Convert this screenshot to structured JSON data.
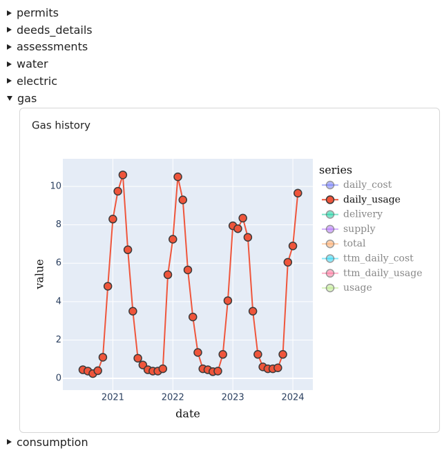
{
  "sections": [
    {
      "label": "permits",
      "expanded": false
    },
    {
      "label": "deeds_details",
      "expanded": false
    },
    {
      "label": "assessments",
      "expanded": false
    },
    {
      "label": "water",
      "expanded": false
    },
    {
      "label": "electric",
      "expanded": false
    },
    {
      "label": "gas",
      "expanded": true
    },
    {
      "label": "consumption",
      "expanded": false
    }
  ],
  "chart_data": {
    "type": "line",
    "title": "Gas history",
    "x_label": "date",
    "y_label": "value",
    "legend_title": "series",
    "legend": "right",
    "grid": true,
    "x": [
      "2020-07",
      "2020-08",
      "2020-09",
      "2020-10",
      "2020-11",
      "2020-12",
      "2021-01",
      "2021-02",
      "2021-03",
      "2021-04",
      "2021-05",
      "2021-06",
      "2021-07",
      "2021-08",
      "2021-09",
      "2021-10",
      "2021-11",
      "2021-12",
      "2022-01",
      "2022-02",
      "2022-03",
      "2022-04",
      "2022-05",
      "2022-06",
      "2022-07",
      "2022-08",
      "2022-09",
      "2022-10",
      "2022-11",
      "2022-12",
      "2023-01",
      "2023-02",
      "2023-03",
      "2023-04",
      "2023-05",
      "2023-06",
      "2023-07",
      "2023-08",
      "2023-09",
      "2023-10",
      "2023-11",
      "2023-12",
      "2024-01",
      "2024-02"
    ],
    "xlim": [
      "2020-03",
      "2024-05"
    ],
    "xticks": [
      2021,
      2022,
      2023,
      2024
    ],
    "ylim": [
      -0.61,
      11.44
    ],
    "yticks": [
      0,
      2,
      4,
      6,
      8,
      10
    ],
    "series": [
      {
        "name": "daily_cost",
        "color": "#636efa",
        "visible": false
      },
      {
        "name": "daily_usage",
        "color": "#ef553b",
        "visible": true,
        "values": [
          0.45,
          0.38,
          0.25,
          0.4,
          1.1,
          4.8,
          8.3,
          9.75,
          10.6,
          6.7,
          3.5,
          1.05,
          0.7,
          0.45,
          0.38,
          0.38,
          0.5,
          5.4,
          7.25,
          10.5,
          9.3,
          5.65,
          3.2,
          1.35,
          0.5,
          0.45,
          0.35,
          0.38,
          1.25,
          4.05,
          7.95,
          7.8,
          8.35,
          7.35,
          3.5,
          1.25,
          0.6,
          0.5,
          0.5,
          0.55,
          1.25,
          6.05,
          6.9,
          9.65
        ]
      },
      {
        "name": "delivery",
        "color": "#00cc96",
        "visible": false
      },
      {
        "name": "supply",
        "color": "#ab63fa",
        "visible": false
      },
      {
        "name": "total",
        "color": "#ffa15a",
        "visible": false
      },
      {
        "name": "ttm_daily_cost",
        "color": "#19d3f3",
        "visible": false
      },
      {
        "name": "ttm_daily_usage",
        "color": "#ff6692",
        "visible": false
      },
      {
        "name": "usage",
        "color": "#b6e880",
        "visible": false
      }
    ]
  }
}
